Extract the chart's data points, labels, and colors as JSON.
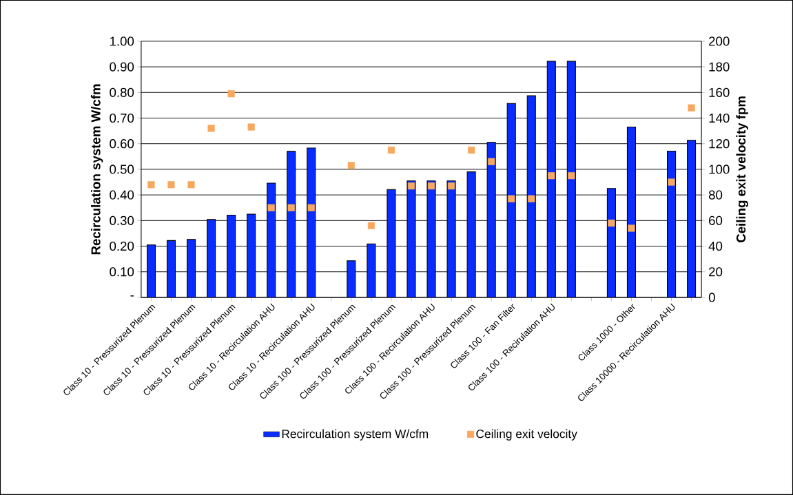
{
  "chart_data": {
    "type": "bar",
    "categories": [
      "Class 10 - Pressurized Plenum",
      null,
      "Class 10 - Pressurized Plenum",
      null,
      "Class 10 - Pressurized Plenum",
      null,
      "Class 10 - Recirculation AHU",
      null,
      "Class 10 - Recirculation AHU",
      null,
      "Class 100 - Pressurized Plenum",
      null,
      "Class 100 - Pressurized Plenum",
      null,
      "Class 100 - Recirculation AHU",
      null,
      "Class 100 - Pressurized Plenum",
      null,
      "Class 100 - Fan Filter",
      null,
      "Class 100 - Recirulation AHU",
      null,
      null,
      null,
      "Class 1000 - Other",
      null,
      "Class 10000 - Recirculation AHU",
      null
    ],
    "series": [
      {
        "name": "Recirculation system W/cfm",
        "color": "#0a2dff",
        "values": [
          0.205,
          0.222,
          0.226,
          0.304,
          0.321,
          0.325,
          0.446,
          0.57,
          0.583,
          null,
          0.143,
          0.209,
          0.421,
          0.455,
          0.455,
          0.455,
          0.49,
          0.605,
          0.757,
          0.787,
          0.922,
          0.922,
          null,
          0.425,
          0.665,
          null,
          0.571,
          0.613
        ]
      },
      {
        "name": "Ceiling exit velocity",
        "type": "scatter",
        "axis": "y2",
        "marker": "square",
        "color": "#f8a85e",
        "values": [
          88,
          88,
          88,
          132,
          159,
          133,
          70,
          70,
          70,
          null,
          103,
          56,
          115,
          87,
          87,
          87,
          115,
          106,
          77,
          77,
          95,
          95,
          null,
          58,
          54,
          null,
          90,
          148
        ]
      }
    ],
    "ylabel": "Recirculation system W/cfm",
    "y2label": "Ceiling exit velocity fpm",
    "ylim": [
      0,
      1
    ],
    "yticks": [
      {
        "value": 0,
        "label": "-"
      },
      {
        "value": 0.1,
        "label": "0.10"
      },
      {
        "value": 0.2,
        "label": "0.20"
      },
      {
        "value": 0.3,
        "label": "0.30"
      },
      {
        "value": 0.4,
        "label": "0.40"
      },
      {
        "value": 0.5,
        "label": "0.50"
      },
      {
        "value": 0.6,
        "label": "0.60"
      },
      {
        "value": 0.7,
        "label": "0.70"
      },
      {
        "value": 0.8,
        "label": "0.80"
      },
      {
        "value": 0.9,
        "label": "0.90"
      },
      {
        "value": 1,
        "label": "1.00"
      }
    ],
    "y2lim": [
      0,
      200
    ],
    "y2ticks": [
      0,
      20,
      40,
      60,
      80,
      100,
      120,
      140,
      160,
      180,
      200
    ],
    "grid": "y",
    "legend": "bottom"
  }
}
